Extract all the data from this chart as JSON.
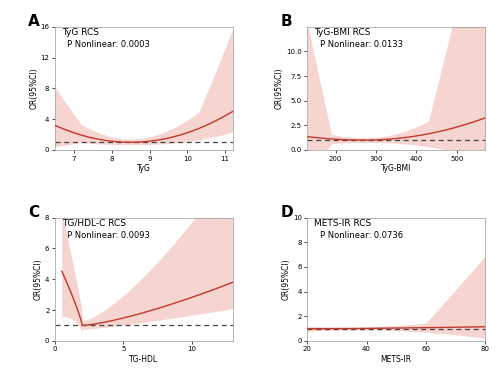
{
  "panels": [
    {
      "label": "A",
      "title": "TyG RCS",
      "p_text": "P Nonlinear: 0.0003",
      "xlabel": "TyG",
      "ylabel": "OR(95%CI)",
      "xlim": [
        6.5,
        11.2
      ],
      "ylim": [
        0,
        16
      ],
      "yticks": [
        0,
        4,
        8,
        12,
        16
      ],
      "xticks": [
        7,
        8,
        9,
        10,
        11
      ],
      "ref_line": 1.0,
      "x_min": 8.5
    },
    {
      "label": "B",
      "title": "TyG-BMI RCS",
      "p_text": "P Nonlinear: 0.0133",
      "xlabel": "TyG-BMI",
      "ylabel": "OR(95%CI)",
      "xlim": [
        130,
        570
      ],
      "ylim": [
        0,
        12.5
      ],
      "yticks": [
        0,
        2.5,
        5.0,
        7.5,
        10.0
      ],
      "xticks": [
        200,
        300,
        400,
        500
      ],
      "ref_line": 1.0,
      "x_min": 270
    },
    {
      "label": "C",
      "title": "TG/HDL-C RCS",
      "p_text": "P Nonlinear: 0.0093",
      "xlabel": "TG-HDL",
      "ylabel": "OR(95%CI)",
      "xlim": [
        0.5,
        13
      ],
      "ylim": [
        0,
        8
      ],
      "yticks": [
        0,
        2,
        4,
        6,
        8
      ],
      "xticks": [
        0,
        5,
        10
      ],
      "ref_line": 1.0,
      "x_min": 2.0
    },
    {
      "label": "D",
      "title": "METS-IR RCS",
      "p_text": "P Nonlinear: 0.0736",
      "xlabel": "METS-IR",
      "ylabel": "OR(95%CI)",
      "xlim": [
        20,
        80
      ],
      "ylim": [
        0,
        10
      ],
      "yticks": [
        0,
        2,
        4,
        6,
        8,
        10
      ],
      "xticks": [
        20,
        40,
        60,
        80
      ],
      "ref_line": 1.0,
      "x_min": 35
    }
  ],
  "line_color": "#c0392b",
  "fill_color": "#e8857a",
  "fill_alpha": 0.35,
  "ref_color": "#444444",
  "background_color": "#ffffff",
  "label_fontsize": 11,
  "title_fontsize": 6.5,
  "p_fontsize": 6,
  "axis_fontsize": 5.5,
  "tick_fontsize": 5
}
